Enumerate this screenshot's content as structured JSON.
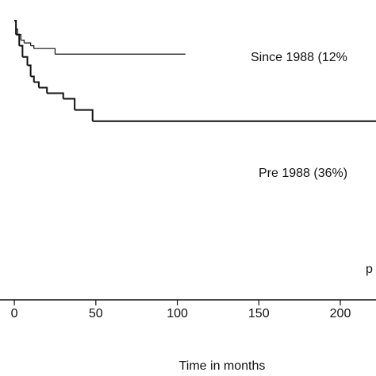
{
  "chart_data": {
    "type": "step",
    "x_label": "Time in months",
    "xlim": [
      -8.8,
      221.9
    ],
    "ylim": [
      0,
      1
    ],
    "xticks": [
      0,
      50,
      100,
      150,
      200
    ],
    "series": [
      {
        "name": "Since 1988 (12%",
        "color": "#111111",
        "x": [
          0,
          1,
          2,
          4,
          6,
          10,
          12,
          25,
          105
        ],
        "values": [
          1.0,
          0.97,
          0.95,
          0.93,
          0.92,
          0.91,
          0.9,
          0.88,
          0.88
        ]
      },
      {
        "name": "Pre 1988 (36%)",
        "color": "#111111",
        "x": [
          0,
          1,
          3,
          5,
          8,
          10,
          12,
          15,
          20,
          30,
          37,
          48,
          222
        ],
        "values": [
          1.0,
          0.95,
          0.91,
          0.87,
          0.84,
          0.8,
          0.78,
          0.76,
          0.74,
          0.72,
          0.68,
          0.64,
          0.64
        ]
      }
    ],
    "annotation": "p"
  }
}
